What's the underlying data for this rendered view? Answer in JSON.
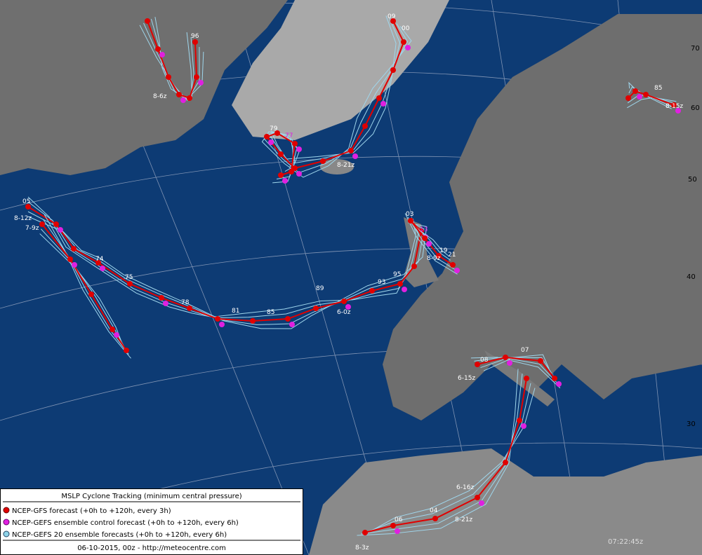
{
  "legend": {
    "title": "MSLP Cyclone Tracking (minimum central pressure)",
    "items": [
      "NCEP-GFS forecast (+0h to +120h, every 3h)",
      "NCEP-GEFS ensemble control forecast (+0h to +120h, every 6h)",
      "NCEP-GEFS 20 ensemble forecasts (+0h to +120h, every 6h)"
    ],
    "footer": "06-10-2015, 00z - http://meteocentre.com"
  },
  "clock": "07:22:45z",
  "latitude_labels": [
    "70",
    "60",
    "50",
    "40",
    "30"
  ],
  "track_labels": [
    "8-12z",
    "7-9z",
    "05",
    "74",
    "75",
    "78",
    "81",
    "85",
    "89",
    "93",
    "95",
    "6-0z",
    "8-21z",
    "79",
    "77",
    "09",
    "00",
    "8-6z",
    "96",
    "8-15z",
    "85",
    "8-9z",
    "07",
    "08",
    "6-15z",
    "8-3z",
    "06",
    "04",
    "8-21z",
    "6-16z",
    "03",
    "13",
    "19",
    "21"
  ]
}
